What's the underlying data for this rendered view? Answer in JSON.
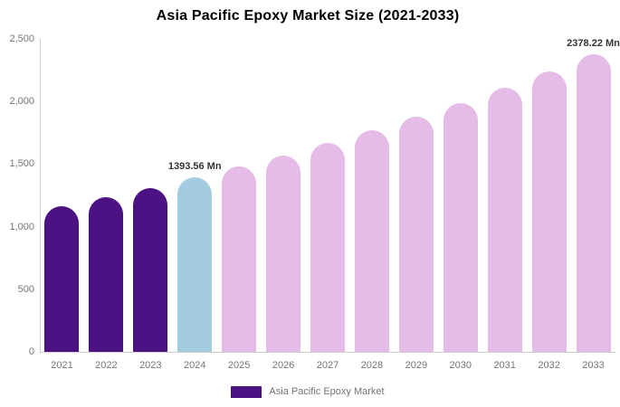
{
  "chart_data": {
    "type": "bar",
    "title": "Asia Pacific Epoxy Market Size (2021-2033)",
    "categories": [
      "2021",
      "2022",
      "2023",
      "2024",
      "2025",
      "2026",
      "2027",
      "2028",
      "2029",
      "2030",
      "2031",
      "2032",
      "2033"
    ],
    "values": [
      1160,
      1235,
      1305,
      1393.56,
      1479,
      1569,
      1666,
      1767,
      1876,
      1990,
      2112,
      2241,
      2378.22
    ],
    "unit": "Mn",
    "xlabel": "",
    "ylabel": "",
    "ylim": [
      0,
      2500
    ],
    "ytick_values": [
      0,
      500,
      1000,
      1500,
      2000,
      2500
    ],
    "ytick_labels": [
      "0",
      "500",
      "1,000",
      "1,500",
      "2,000",
      "2,500"
    ],
    "grid": false,
    "bar_colors": [
      "#4C1183",
      "#4C1183",
      "#4C1183",
      "#A3CCE1",
      "#E5BCE7",
      "#E5BCE7",
      "#E5BCE7",
      "#E5BCE7",
      "#E5BCE7",
      "#E5BCE7",
      "#E5BCE7",
      "#E5BCE7",
      "#E5BCE7"
    ],
    "annotations": [
      {
        "category": "2024",
        "text": "1393.56 Mn"
      },
      {
        "category": "2033",
        "text": "2378.22 Mn"
      }
    ],
    "legend": {
      "position": "bottom",
      "items": [
        {
          "label": "Asia Pacific Epoxy Market",
          "color": "#4C1183"
        }
      ]
    }
  },
  "colors": {
    "historical_bar": "#4C1183",
    "base_year_bar": "#A3CCE1",
    "forecast_bar": "#E5BCE7",
    "axis_line": "#cccccc",
    "tick_text": "#757575",
    "annotation_text": "#333333",
    "title_text": "#000000"
  }
}
